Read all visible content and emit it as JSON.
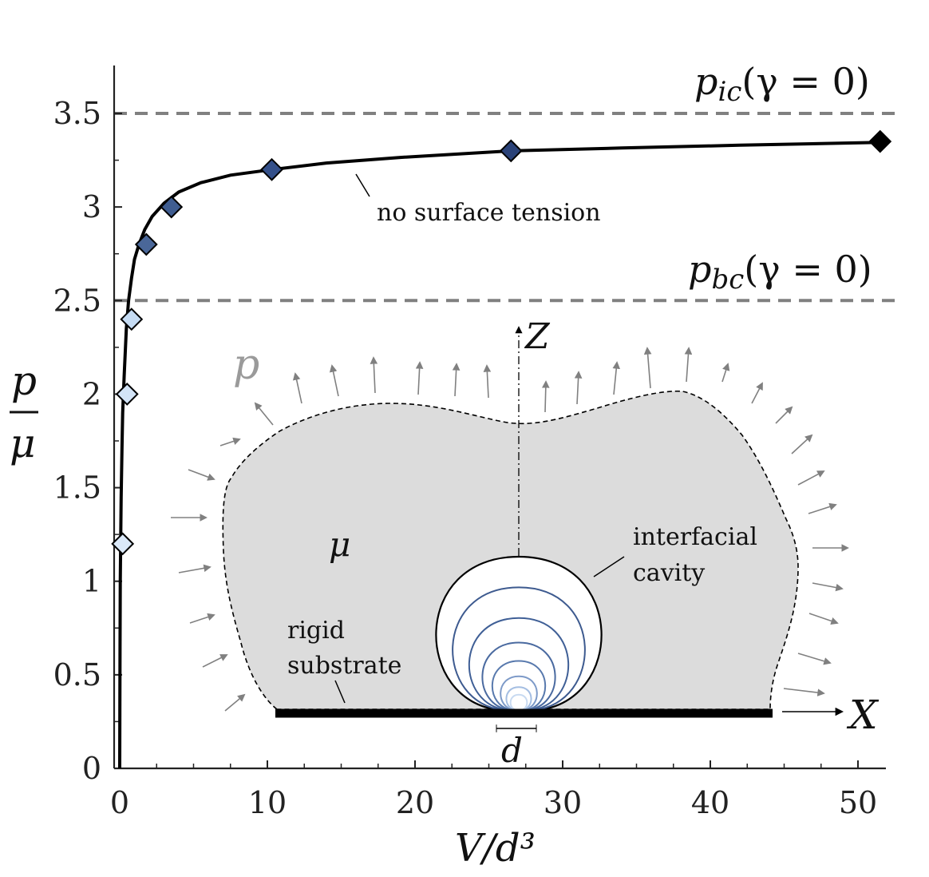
{
  "chart_data": {
    "type": "line",
    "xlabel": "V/d³",
    "ylabel_num": "p",
    "ylabel_den": "μ",
    "xlim": [
      -0.5,
      52
    ],
    "ylim": [
      0,
      3.75
    ],
    "xticks": [
      0,
      10,
      20,
      30,
      40,
      50
    ],
    "yticks": [
      0,
      0.5,
      1,
      1.5,
      2,
      2.5,
      3,
      3.5
    ],
    "ytick_labels": [
      "0",
      "0.5",
      "1",
      "1.5",
      "2",
      "2.5",
      "3",
      "3.5"
    ],
    "series": [
      {
        "curve_x": [
          0,
          0.01,
          0.02,
          0.04,
          0.07,
          0.1,
          0.15,
          0.2,
          0.3,
          0.45,
          0.6,
          0.8,
          1.0,
          1.3,
          1.7,
          2.2,
          3.0,
          4.0,
          5.5,
          7.5,
          10.3,
          14,
          19,
          26.5,
          34,
          42,
          51.5
        ],
        "curve_y": [
          0,
          0.35,
          0.65,
          1.0,
          1.25,
          1.45,
          1.7,
          1.9,
          2.1,
          2.35,
          2.5,
          2.62,
          2.72,
          2.8,
          2.88,
          2.95,
          3.02,
          3.08,
          3.13,
          3.17,
          3.2,
          3.235,
          3.265,
          3.3,
          3.315,
          3.33,
          3.345
        ],
        "points": [
          {
            "x": 0.2,
            "y": 1.2,
            "color": "#dbe9f9"
          },
          {
            "x": 0.5,
            "y": 2.0,
            "color": "#d3e4f7"
          },
          {
            "x": 0.8,
            "y": 2.4,
            "color": "#c6dcf4"
          },
          {
            "x": 1.8,
            "y": 2.8,
            "color": "#4a6799"
          },
          {
            "x": 3.5,
            "y": 3.0,
            "color": "#3f5d91"
          },
          {
            "x": 10.3,
            "y": 3.2,
            "color": "#34508a"
          },
          {
            "x": 26.5,
            "y": 3.3,
            "color": "#2a4278"
          },
          {
            "x": 51.5,
            "y": 3.35,
            "color": "#000000"
          }
        ]
      }
    ],
    "reference_lines": [
      {
        "y": 3.5,
        "label_main": "p",
        "label_sub": "ic",
        "label_rest": "(γ = 0)"
      },
      {
        "y": 2.5,
        "label_main": "p",
        "label_sub": "bc",
        "label_rest": "(γ = 0)"
      }
    ],
    "curve_annotation": "no surface tension",
    "inset": {
      "pressure_label": "p",
      "material_label": "μ",
      "z_label": "Z",
      "x_label": "X",
      "d_label": "d",
      "substrate_label_line1": "rigid",
      "substrate_label_line2": "substrate",
      "cavity_label_line1": "interfacial",
      "cavity_label_line2": "cavity",
      "cavity_scales": [
        1.0,
        0.8,
        0.6,
        0.44,
        0.32,
        0.22,
        0.15,
        0.1
      ],
      "cavity_colors": [
        "#000000",
        "#3d5a8f",
        "#3f5f96",
        "#4a6aa0",
        "#5879ad",
        "#7d9ac8",
        "#a4bee2",
        "#c8daf1"
      ]
    },
    "colors": {
      "curve": "#000000",
      "reference_line": "#808080",
      "inset_fill": "#dcdcdc",
      "arrow": "#808080",
      "pressure_label": "#9a9a9a"
    }
  }
}
